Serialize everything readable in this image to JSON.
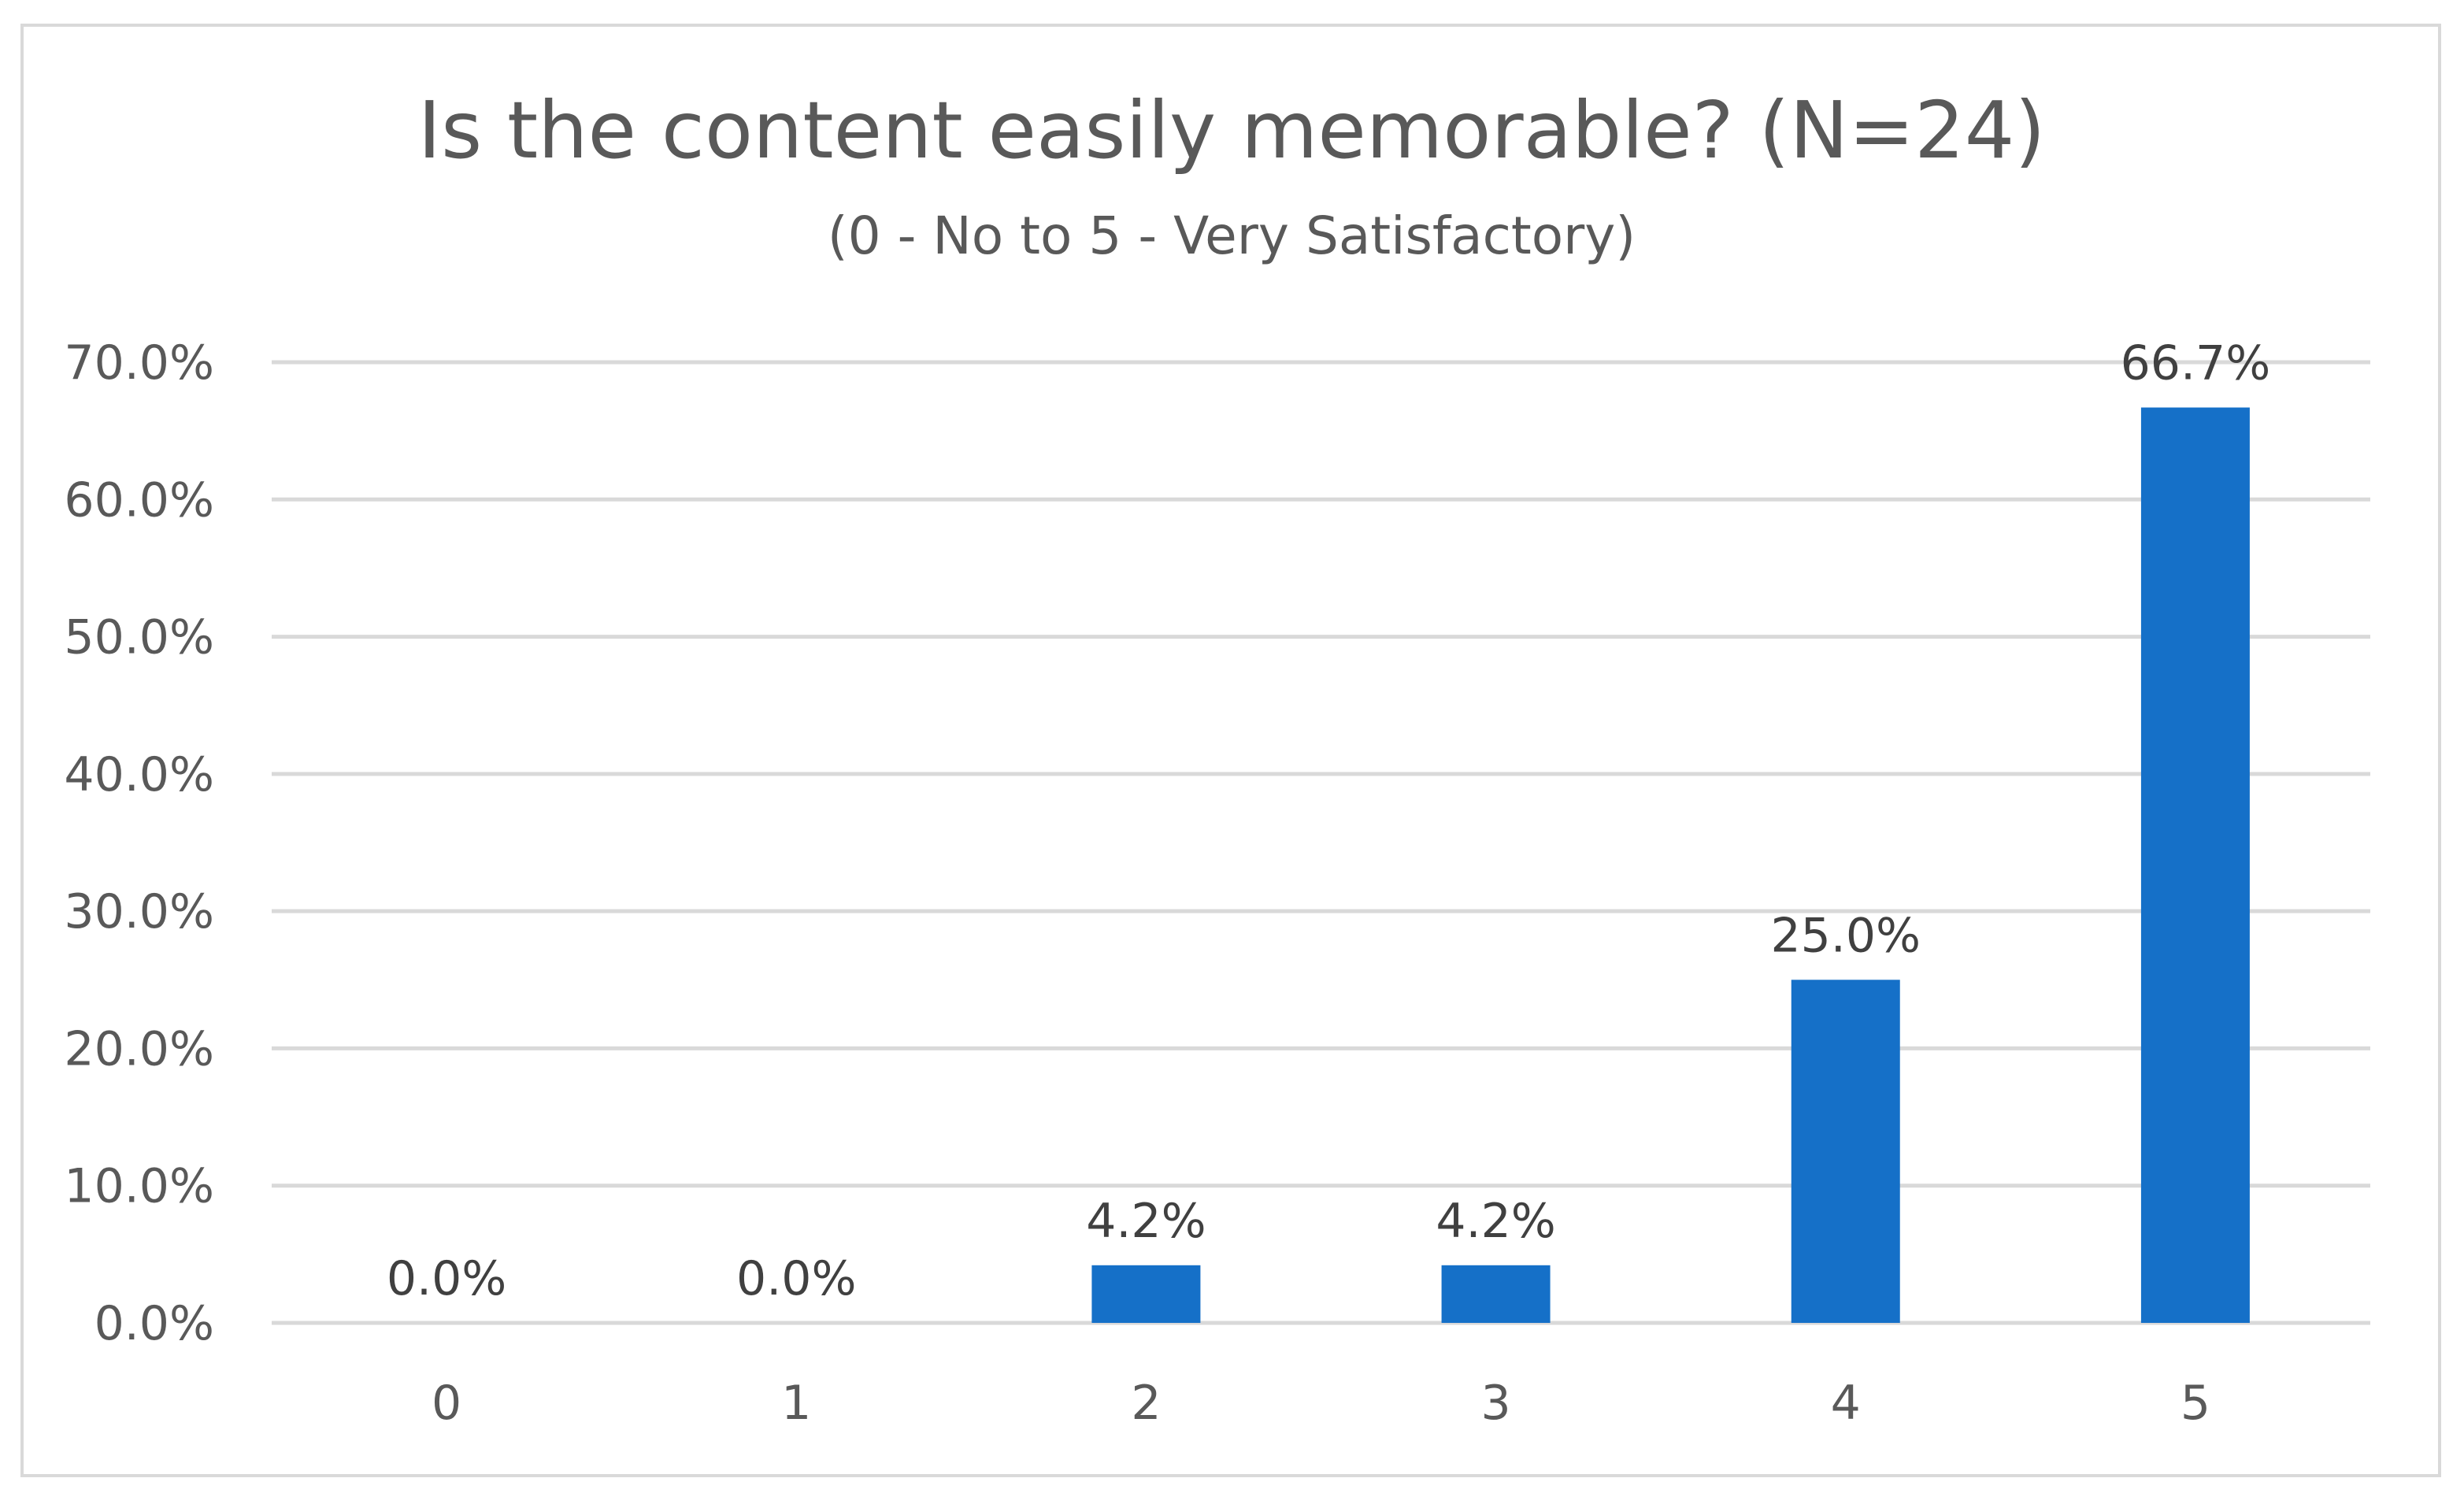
{
  "chart_data": {
    "type": "bar",
    "title": "Is the content easily memorable? (N=24)",
    "subtitle": "(0 - No to 5 - Very Satisfactory)",
    "xlabel": "",
    "ylabel": "",
    "categories": [
      "0",
      "1",
      "2",
      "3",
      "4",
      "5"
    ],
    "values": [
      0.0,
      0.0,
      4.2,
      4.2,
      25.0,
      66.7
    ],
    "data_labels": [
      "0.0%",
      "0.0%",
      "4.2%",
      "4.2%",
      "25.0%",
      "66.7%"
    ],
    "ylim": [
      0,
      70
    ],
    "yticks": [
      0,
      10,
      20,
      30,
      40,
      50,
      60,
      70
    ],
    "ytick_labels": [
      "0.0%",
      "10.0%",
      "20.0%",
      "30.0%",
      "40.0%",
      "50.0%",
      "60.0%",
      "70.0%"
    ],
    "grid": true,
    "legend": "none",
    "colors": {
      "bar": "#1570C8",
      "grid": "#d9d9d9",
      "text": "#595959"
    }
  }
}
